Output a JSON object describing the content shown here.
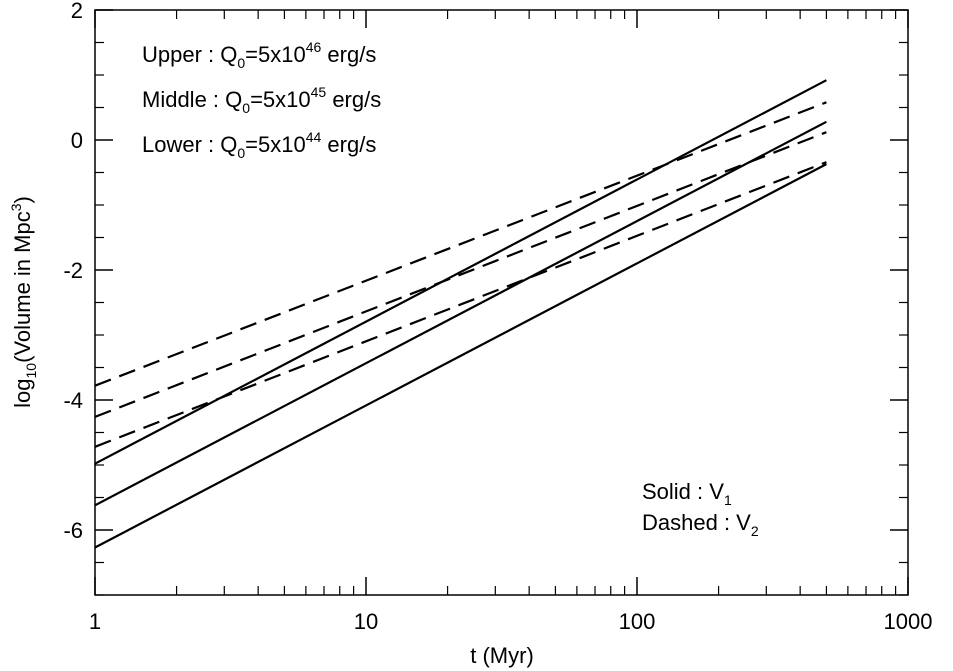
{
  "chart_data": {
    "type": "line",
    "xlabel": "t (Myr)",
    "ylabel": {
      "prefix": "log",
      "sub": "10",
      "middle": "(Volume in Mpc",
      "sup": "3",
      "suffix": ")"
    },
    "x_scale": "log",
    "xlim": [
      1,
      1000
    ],
    "ylim": [
      -7,
      2
    ],
    "x_ticks": [
      1,
      10,
      100,
      1000
    ],
    "x_tick_labels": [
      "1",
      "10",
      "100",
      "1000"
    ],
    "y_ticks": [
      -6,
      -4,
      -2,
      0,
      2
    ],
    "y_tick_labels": [
      "-6",
      "-4",
      "-2",
      "0",
      "2"
    ],
    "grid": false,
    "series": [
      {
        "style": "solid",
        "x": [
          1,
          500
        ],
        "y": [
          -4.98,
          0.92
        ]
      },
      {
        "style": "solid",
        "x": [
          1,
          500
        ],
        "y": [
          -5.62,
          0.28
        ]
      },
      {
        "style": "solid",
        "x": [
          1,
          500
        ],
        "y": [
          -6.27,
          -0.37
        ]
      },
      {
        "style": "dashed",
        "x": [
          1,
          500
        ],
        "y": [
          -3.78,
          0.58
        ]
      },
      {
        "style": "dashed",
        "x": [
          1,
          500
        ],
        "y": [
          -4.26,
          0.12
        ]
      },
      {
        "style": "dashed",
        "x": [
          1,
          500
        ],
        "y": [
          -4.72,
          -0.34
        ]
      }
    ],
    "annotations": {
      "upper": {
        "label": "Upper : Q",
        "sub": "0",
        "eq": "=5x10",
        "sup": "46",
        "unit": " erg/s"
      },
      "middle": {
        "label": "Middle : Q",
        "sub": "0",
        "eq": "=5x10",
        "sup": "45",
        "unit": " erg/s"
      },
      "lower": {
        "label": "Lower : Q",
        "sub": "0",
        "eq": "=5x10",
        "sup": "44",
        "unit": " erg/s"
      },
      "solid": {
        "label": "Solid : V",
        "sub": "1"
      },
      "dashed": {
        "label": "Dashed : V",
        "sub": "2"
      }
    },
    "colors": {
      "line": "#000000",
      "axis": "#000000"
    }
  }
}
